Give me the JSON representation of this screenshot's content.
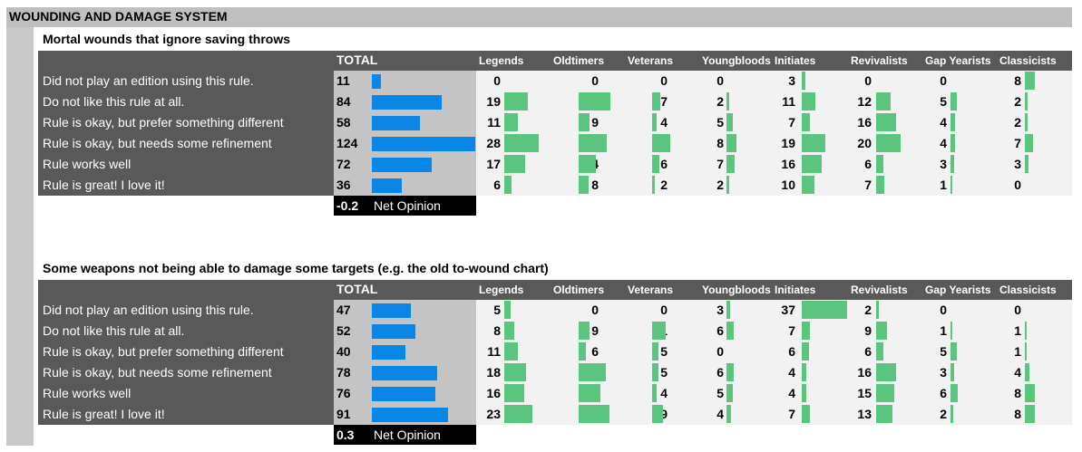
{
  "page_title": "WOUNDING AND DAMAGE SYSTEM",
  "total_header": "TOTAL",
  "net_opinion_label": "Net Opinion",
  "colors": {
    "total_bar": "#0a86e6",
    "group_bar": "#5bc47e",
    "label_bg": "#595959",
    "total_bg": "#c4c4c4",
    "groups_bg": "#f2f2f2"
  },
  "chart_data": [
    {
      "type": "table",
      "title": "Mortal wounds that ignore saving throws",
      "groups": [
        "Legends",
        "Oldtimers",
        "Veterans",
        "Youngbloods",
        "Initiates",
        "Revivalists",
        "Gap Yearists",
        "Classicists"
      ],
      "rows": [
        {
          "label": "Did not play an edition using this rule.",
          "total": 11,
          "values": [
            0,
            0,
            0,
            0,
            3,
            0,
            0,
            8
          ]
        },
        {
          "label": "Do not like this rule at all.",
          "total": 84,
          "values": [
            19,
            26,
            7,
            2,
            11,
            12,
            5,
            2
          ]
        },
        {
          "label": "Rule is okay, but prefer something different",
          "total": 58,
          "values": [
            11,
            9,
            4,
            5,
            7,
            16,
            4,
            2
          ]
        },
        {
          "label": "Rule is okay, but needs some refinement",
          "total": 124,
          "values": [
            28,
            23,
            15,
            8,
            19,
            20,
            4,
            7
          ]
        },
        {
          "label": "Rule works well",
          "total": 72,
          "values": [
            17,
            14,
            6,
            7,
            16,
            6,
            3,
            3
          ]
        },
        {
          "label": "Rule is great! I love it!",
          "total": 36,
          "values": [
            6,
            8,
            2,
            2,
            10,
            7,
            1,
            0
          ]
        }
      ],
      "net_opinion": "-0.2"
    },
    {
      "type": "table",
      "title": "Some weapons not being able to damage some targets (e.g. the old to-wound chart)",
      "groups": [
        "Legends",
        "Oldtimers",
        "Veterans",
        "Youngbloods",
        "Initiates",
        "Revivalists",
        "Gap Yearists",
        "Classicists"
      ],
      "rows": [
        {
          "label": "Did not play an edition using this rule.",
          "total": 47,
          "values": [
            5,
            0,
            0,
            3,
            37,
            2,
            0,
            0
          ]
        },
        {
          "label": "Do not like this rule at all.",
          "total": 52,
          "values": [
            8,
            9,
            11,
            6,
            7,
            9,
            1,
            1
          ]
        },
        {
          "label": "Rule is okay, but prefer something different",
          "total": 40,
          "values": [
            11,
            6,
            5,
            0,
            6,
            6,
            5,
            1
          ]
        },
        {
          "label": "Rule is okay, but needs some refinement",
          "total": 78,
          "values": [
            18,
            22,
            5,
            6,
            4,
            16,
            3,
            4
          ]
        },
        {
          "label": "Rule works well",
          "total": 76,
          "values": [
            16,
            18,
            4,
            5,
            4,
            15,
            6,
            8
          ]
        },
        {
          "label": "Rule is great! I love it!",
          "total": 91,
          "values": [
            23,
            25,
            9,
            4,
            7,
            13,
            2,
            8
          ]
        }
      ],
      "net_opinion": "0.3"
    }
  ]
}
